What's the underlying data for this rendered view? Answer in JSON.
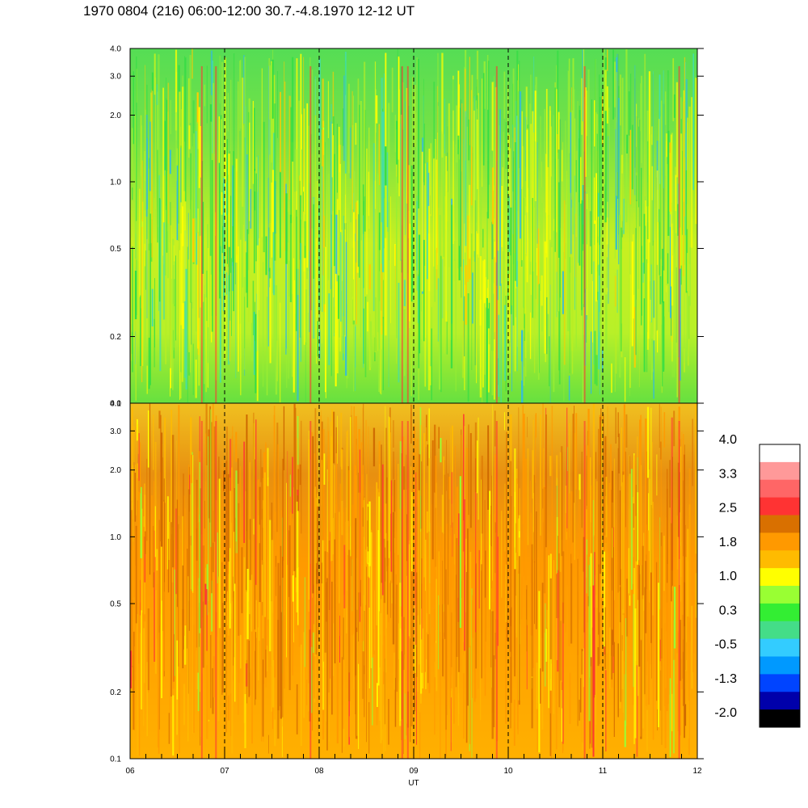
{
  "title": "1970 0804 (216) 06:00-12:00 30.7.-4.8.1970  12-12 UT",
  "chart_data": [
    {
      "type": "heatmap",
      "name": "upper-panel",
      "x_range": [
        6,
        12
      ],
      "ylim": [
        0.1,
        4.0
      ],
      "y_scale": "log",
      "y_ticks": [
        "0.1",
        "0.2",
        "0.5",
        "1.0",
        "2.0",
        "3.0",
        "4.0"
      ],
      "y_tick_values": [
        0.1,
        0.2,
        0.5,
        1.0,
        2.0,
        3.0,
        4.0
      ],
      "dominant_levels": [
        0.3,
        1.0
      ],
      "hour_markers": [
        7,
        8,
        9,
        10,
        11
      ]
    },
    {
      "type": "heatmap",
      "name": "lower-panel",
      "x_range": [
        6,
        12
      ],
      "ylim": [
        0.1,
        4.0
      ],
      "y_scale": "log",
      "y_ticks": [
        "0.1",
        "0.2",
        "0.5",
        "1.0",
        "2.0",
        "3.0",
        "4.0"
      ],
      "y_tick_values": [
        0.1,
        0.2,
        0.5,
        1.0,
        2.0,
        3.0,
        4.0
      ],
      "dominant_levels": [
        1.4,
        2.2
      ],
      "hour_markers": [
        7,
        8,
        9,
        10,
        11
      ]
    }
  ],
  "x_axis": {
    "ticks": [
      "06",
      "07",
      "08",
      "09",
      "10",
      "11",
      "12"
    ],
    "tick_values": [
      6,
      7,
      8,
      9,
      10,
      11,
      12
    ],
    "label": "UT"
  },
  "colorbar": {
    "labels": [
      "4.0",
      "3.3",
      "2.5",
      "1.8",
      "1.0",
      "0.3",
      "-0.5",
      "-1.3",
      "-2.0"
    ],
    "colors_top_to_bottom": [
      "#ffffff",
      "#ff9999",
      "#ff6666",
      "#ff3333",
      "#d97000",
      "#ff9900",
      "#ffbb00",
      "#ffff00",
      "#99ff33",
      "#33ee33",
      "#44dd88",
      "#33ccff",
      "#0099ff",
      "#0044ff",
      "#0000aa",
      "#000000"
    ]
  }
}
